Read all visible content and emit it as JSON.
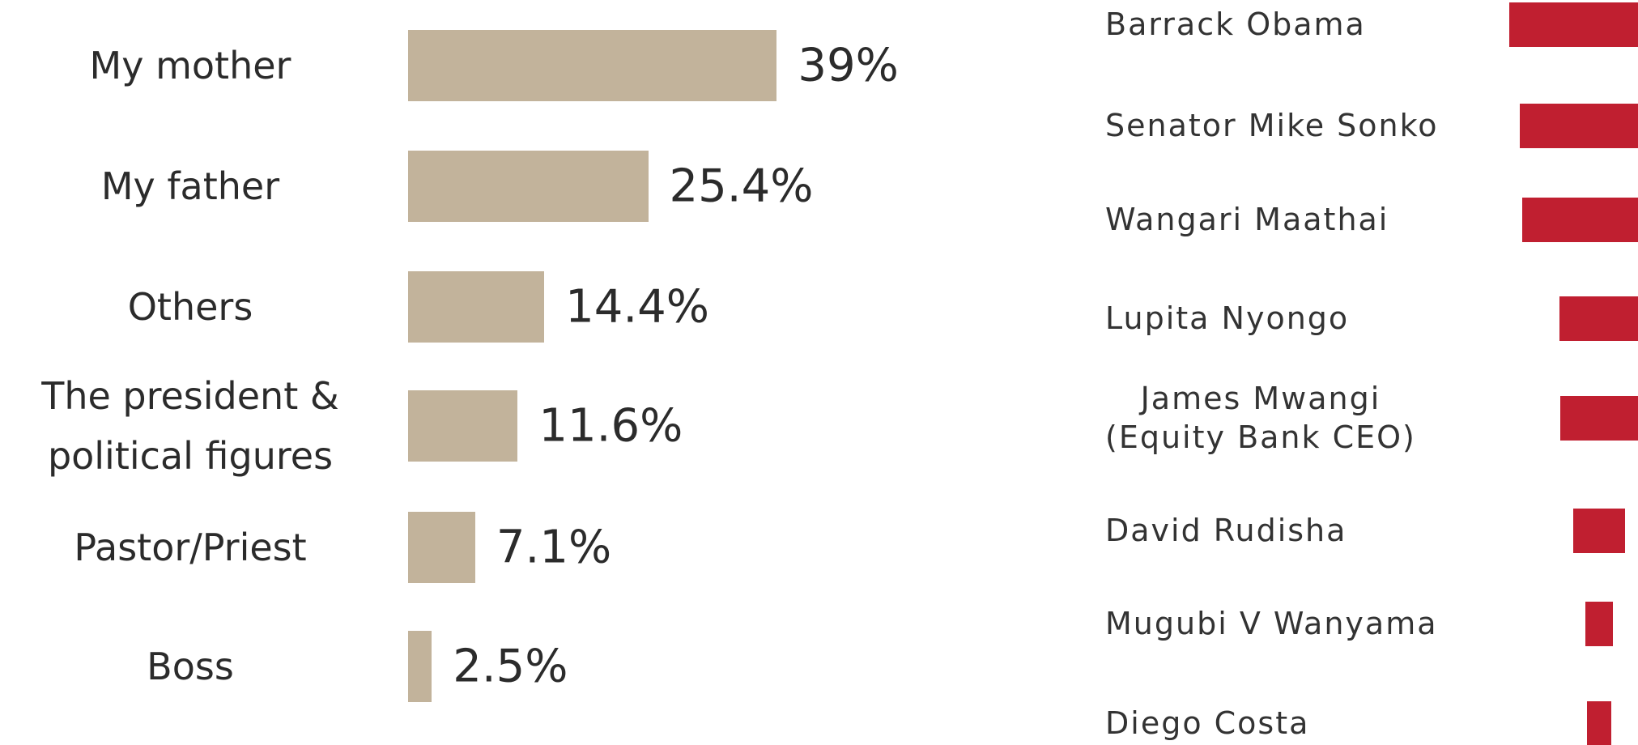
{
  "chart_data": [
    {
      "type": "bar",
      "orientation": "horizontal",
      "categories": [
        "My mother",
        "My father",
        "Others",
        "The president &\npolitical figures",
        "Pastor/Priest",
        "Boss"
      ],
      "values": [
        39,
        25.4,
        14.4,
        11.6,
        7.1,
        2.5
      ],
      "value_labels": [
        "39%",
        "25.4%",
        "14.4%",
        "11.6%",
        "7.1%",
        "2.5%"
      ],
      "color": "#c2b39b",
      "xlim": [
        0,
        40
      ]
    },
    {
      "type": "bar",
      "orientation": "horizontal",
      "align": "center",
      "categories": [
        "Barrack Obama",
        "Senator Mike Sonko",
        "Wangari Maathai",
        "Lupita Nyongo",
        "James Mwangi\n(Equity Bank CEO)",
        "David Rudisha",
        "Mugubi V Wanyama",
        "Diego Costa"
      ],
      "values": [
        8.6,
        7.6,
        7.4,
        3.8,
        3.7,
        2.5,
        1.3,
        1.2
      ],
      "color": "#c01f30",
      "xlim": [
        0,
        10
      ]
    }
  ]
}
